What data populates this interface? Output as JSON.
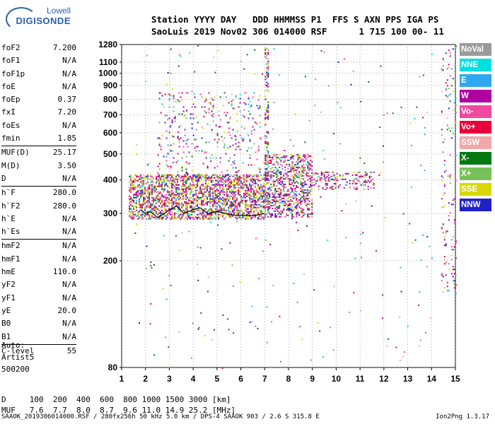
{
  "logo": {
    "line1": "Lowell",
    "line2": "DIGISONDE"
  },
  "header": {
    "labels": "Station YYYY DAY   DDD HHMMSS P1  FFS S AXN PPS IGA PS",
    "values": "SaoLuis 2019 Nov02 306 014000 RSF      1 715 100 00- 11"
  },
  "params": [
    [
      {
        "name": "foF2",
        "value": "7.200"
      },
      {
        "name": "foF1",
        "value": "N/A"
      },
      {
        "name": "foF1p",
        "value": "N/A"
      },
      {
        "name": "foE",
        "value": "N/A"
      },
      {
        "name": "foEp",
        "value": "0.37"
      },
      {
        "name": "fxI",
        "value": "7.20"
      },
      {
        "name": "foEs",
        "value": "N/A"
      },
      {
        "name": "fmin",
        "value": "1.85"
      }
    ],
    [
      {
        "name": "MUF(D)",
        "value": "25.17"
      },
      {
        "name": "M(D)",
        "value": "3.50"
      },
      {
        "name": "D",
        "value": "N/A"
      }
    ],
    [
      {
        "name": "h`F",
        "value": "280.0"
      },
      {
        "name": "h`F2",
        "value": "280.0"
      },
      {
        "name": "h`E",
        "value": "N/A"
      },
      {
        "name": "h`Es",
        "value": "N/A"
      }
    ],
    [
      {
        "name": "hmF2",
        "value": "N/A"
      },
      {
        "name": "hmF1",
        "value": "N/A"
      },
      {
        "name": "hmE",
        "value": "110.0"
      },
      {
        "name": "yF2",
        "value": "N/A"
      },
      {
        "name": "yF1",
        "value": "N/A"
      },
      {
        "name": "yE",
        "value": "20.0"
      },
      {
        "name": "B0",
        "value": "N/A"
      },
      {
        "name": "B1",
        "value": "N/A"
      }
    ],
    [
      {
        "name": "C-level",
        "value": "55"
      }
    ]
  ],
  "auto": {
    "line1": "Auto:",
    "line2": "Artist5",
    "line3": "500200"
  },
  "legend": [
    {
      "label": "NoVal",
      "color": "#9a9a9a"
    },
    {
      "label": "NNE",
      "color": "#00e0e0"
    },
    {
      "label": "E",
      "color": "#30a8f0"
    },
    {
      "label": "W",
      "color": "#b000a0"
    },
    {
      "label": "Vo-",
      "color": "#f04aa0"
    },
    {
      "label": "Vo+",
      "color": "#e8003c"
    },
    {
      "label": "SSW",
      "color": "#f0a8a8"
    },
    {
      "label": "X-",
      "color": "#007a10"
    },
    {
      "label": "X+",
      "color": "#78c058"
    },
    {
      "label": "SSE",
      "color": "#d8d800"
    },
    {
      "label": "NNW",
      "color": "#2020c8"
    }
  ],
  "dmuf": {
    "d_line": "D     100  200  400  600  800 1000 1500 3000 [km]",
    "muf_line": "MUF   7.6  7.7  8.0  8.7  9.6 11.0 14.9 25.2 [MHz]"
  },
  "footer": {
    "left": "SAAOK_2019306014000.RSF / 280fx256h 50 kHz 5.0 km / DPS-4 SAAOK 903 / 2.6 S 315.8 E",
    "right": "Ion2Png 1.3.17"
  },
  "chart_data": {
    "type": "scatter",
    "title": "",
    "xlabel": "",
    "ylabel": "",
    "x_ticks": [
      1,
      2,
      3,
      4,
      5,
      6,
      7,
      8,
      9,
      10,
      11,
      12,
      13,
      14,
      15
    ],
    "y_ticks": [
      80,
      200,
      300,
      400,
      500,
      600,
      700,
      800,
      900,
      1000,
      1100,
      1280
    ],
    "xlim": [
      1,
      15
    ],
    "ylim": [
      80,
      1280
    ],
    "y_scale": "log",
    "grid": true,
    "trace": {
      "name": "",
      "x": [
        1.8,
        2.0,
        2.2,
        2.5,
        2.8,
        3.0,
        3.3,
        3.6,
        4.0,
        4.3,
        4.6,
        5.0,
        5.4,
        5.8,
        6.2,
        6.6,
        7.0
      ],
      "y": [
        310,
        300,
        305,
        290,
        300,
        310,
        320,
        300,
        310,
        315,
        300,
        305,
        300,
        295,
        295,
        295,
        300
      ]
    },
    "echo_regions": [
      {
        "name": "F-trace",
        "x": [
          1.3,
          7.0
        ],
        "y": [
          285,
          420
        ],
        "density": 0.55
      },
      {
        "name": "F-extended",
        "x": [
          7.0,
          9.0
        ],
        "y": [
          290,
          500
        ],
        "density": 0.4
      },
      {
        "name": "F-tail",
        "x": [
          9.0,
          11.6
        ],
        "y": [
          370,
          430
        ],
        "density": 0.3
      },
      {
        "name": "spread",
        "x": [
          2.5,
          6.8
        ],
        "y": [
          400,
          850
        ],
        "density": 0.07
      },
      {
        "name": "vertical-streak",
        "x": [
          7.0,
          7.15
        ],
        "y": [
          300,
          1260
        ],
        "density": 0.35
      },
      {
        "name": "right-edge",
        "x": [
          14.4,
          15.0
        ],
        "y": [
          150,
          1270
        ],
        "density": 0.07
      }
    ]
  }
}
